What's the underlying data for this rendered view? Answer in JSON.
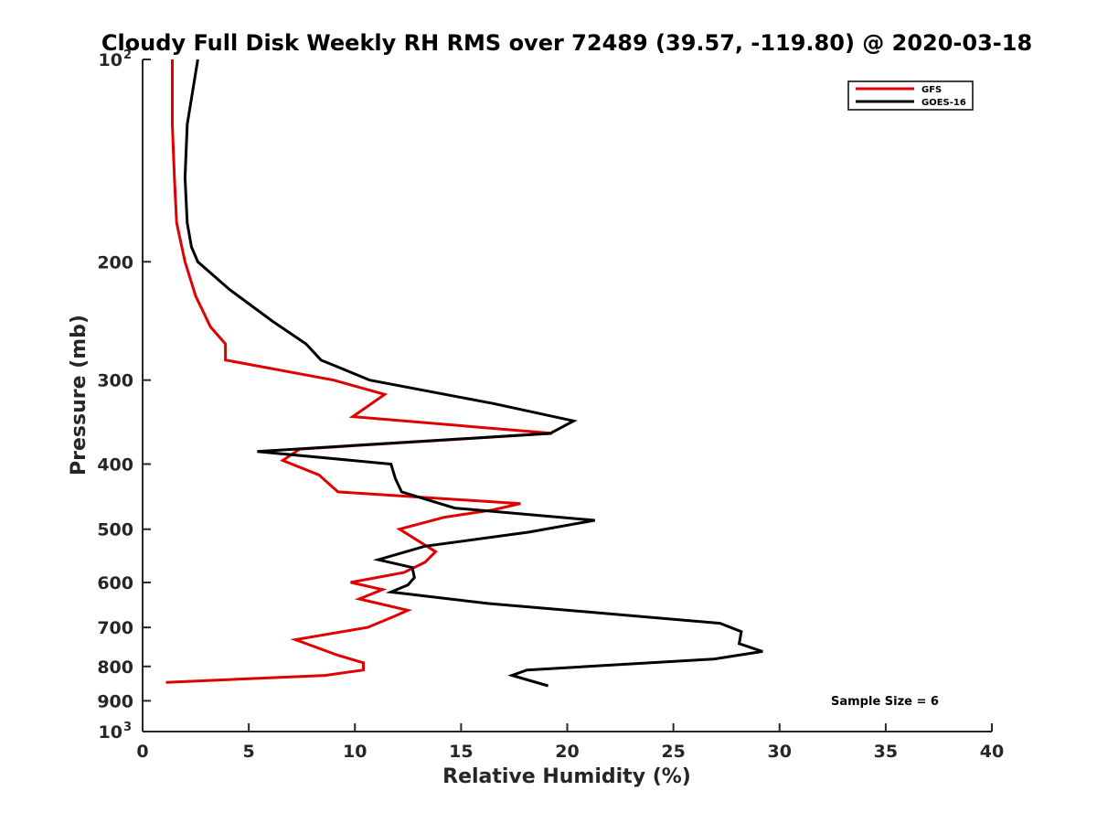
{
  "chart_data": {
    "type": "line",
    "title": "Cloudy Full Disk Weekly RH RMS over 72489 (39.57, -119.80) @ 2020-03-18",
    "xlabel": "Relative Humidity (%)",
    "ylabel": "Pressure (mb)",
    "xlim": [
      0,
      40
    ],
    "ylim": [
      100,
      1000
    ],
    "y_scale": "log",
    "y_reversed": true,
    "grid": false,
    "legend_position": "top-right",
    "xticks": [
      {
        "value": 0,
        "label": "0"
      },
      {
        "value": 5,
        "label": "5"
      },
      {
        "value": 10,
        "label": "10"
      },
      {
        "value": 15,
        "label": "15"
      },
      {
        "value": 20,
        "label": "20"
      },
      {
        "value": 25,
        "label": "25"
      },
      {
        "value": 30,
        "label": "30"
      },
      {
        "value": 35,
        "label": "35"
      },
      {
        "value": 40,
        "label": "40"
      }
    ],
    "yticks": [
      {
        "value": 100,
        "label": "10",
        "sup": "2"
      },
      {
        "value": 200,
        "label": "200"
      },
      {
        "value": 300,
        "label": "300"
      },
      {
        "value": 400,
        "label": "400"
      },
      {
        "value": 500,
        "label": "500"
      },
      {
        "value": 600,
        "label": "600"
      },
      {
        "value": 700,
        "label": "700"
      },
      {
        "value": 800,
        "label": "800"
      },
      {
        "value": 900,
        "label": "900"
      },
      {
        "value": 1000,
        "label": "10",
        "sup": "3"
      }
    ],
    "series": [
      {
        "name": "GFS",
        "color": "#e00000",
        "points": [
          [
            1.4,
            100
          ],
          [
            1.4,
            125
          ],
          [
            1.5,
            150
          ],
          [
            1.6,
            175
          ],
          [
            2.0,
            200
          ],
          [
            2.5,
            225
          ],
          [
            3.2,
            250
          ],
          [
            3.9,
            265
          ],
          [
            3.9,
            280
          ],
          [
            9.0,
            300
          ],
          [
            11.4,
            315
          ],
          [
            9.9,
            340
          ],
          [
            19.3,
            360
          ],
          [
            7.4,
            380
          ],
          [
            6.6,
            395
          ],
          [
            8.3,
            415
          ],
          [
            9.2,
            440
          ],
          [
            17.8,
            458
          ],
          [
            16.5,
            468
          ],
          [
            14.2,
            480
          ],
          [
            12.1,
            500
          ],
          [
            13.8,
            540
          ],
          [
            13.3,
            560
          ],
          [
            12.3,
            580
          ],
          [
            9.8,
            600
          ],
          [
            11.3,
            615
          ],
          [
            10.2,
            635
          ],
          [
            12.5,
            660
          ],
          [
            11.8,
            675
          ],
          [
            10.6,
            700
          ],
          [
            7.2,
            730
          ],
          [
            9.2,
            770
          ],
          [
            10.4,
            790
          ],
          [
            10.4,
            810
          ],
          [
            8.6,
            825
          ],
          [
            1.1,
            845
          ]
        ]
      },
      {
        "name": "GOES-16",
        "color": "#000000",
        "points": [
          [
            2.6,
            100
          ],
          [
            2.1,
            125
          ],
          [
            2.0,
            150
          ],
          [
            2.1,
            175
          ],
          [
            2.3,
            190
          ],
          [
            2.6,
            200
          ],
          [
            4.1,
            220
          ],
          [
            6.1,
            245
          ],
          [
            7.7,
            265
          ],
          [
            8.4,
            280
          ],
          [
            10.7,
            300
          ],
          [
            16.5,
            325
          ],
          [
            20.3,
            345
          ],
          [
            19.2,
            360
          ],
          [
            5.4,
            383
          ],
          [
            11.7,
            400
          ],
          [
            11.9,
            420
          ],
          [
            12.2,
            440
          ],
          [
            14.7,
            465
          ],
          [
            21.3,
            485
          ],
          [
            18.2,
            505
          ],
          [
            13.3,
            530
          ],
          [
            11.1,
            555
          ],
          [
            12.7,
            570
          ],
          [
            12.8,
            590
          ],
          [
            12.5,
            605
          ],
          [
            11.7,
            620
          ],
          [
            16.3,
            645
          ],
          [
            22.5,
            670
          ],
          [
            27.2,
            690
          ],
          [
            28.2,
            710
          ],
          [
            28.1,
            740
          ],
          [
            29.2,
            760
          ],
          [
            26.9,
            780
          ],
          [
            18.1,
            810
          ],
          [
            17.4,
            825
          ],
          [
            19.1,
            855
          ]
        ]
      }
    ],
    "annotation": "Sample Size = 6"
  }
}
